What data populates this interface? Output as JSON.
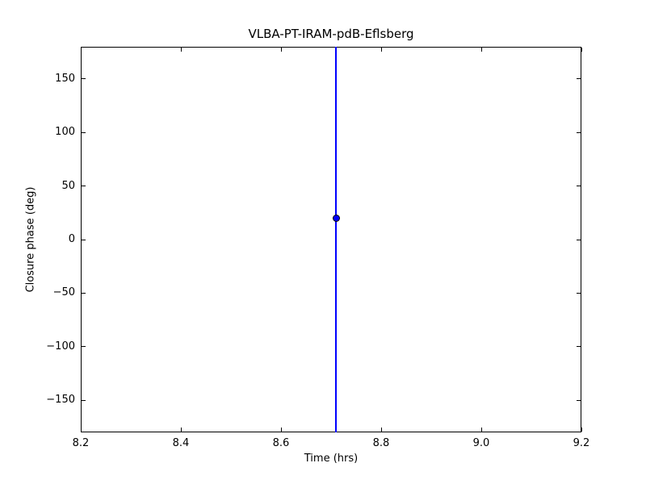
{
  "figure": {
    "background": "#ffffff"
  },
  "chart_data": {
    "type": "scatter",
    "title": "VLBA-PT-IRAM-pdB-Eflsberg",
    "xlabel": "Time (hrs)",
    "ylabel": "Closure phase (deg)",
    "xlim": [
      8.2,
      9.2
    ],
    "ylim": [
      -180,
      180
    ],
    "xtick_values": [
      8.2,
      8.4,
      8.6,
      8.8,
      9.0,
      9.2
    ],
    "xtick_labels": [
      "8.2",
      "8.4",
      "8.6",
      "8.8",
      "9.0",
      "9.2"
    ],
    "ytick_values": [
      -150,
      -100,
      -50,
      0,
      50,
      100,
      150
    ],
    "ytick_labels": [
      "−150",
      "−100",
      "−50",
      "0",
      "50",
      "100",
      "150"
    ],
    "grid": false,
    "legend": null,
    "ticks_direction": "in",
    "ticks_sides": [
      "left",
      "right",
      "top",
      "bottom"
    ],
    "series": [
      {
        "name": "closure phase",
        "marker": "circle",
        "color": "#0000ff",
        "points": [
          {
            "x": 8.71,
            "y": 20
          }
        ],
        "error_bars": [
          {
            "x": 8.71,
            "y_from": -180,
            "y_to": 180,
            "clipped_by_axis": true
          }
        ]
      }
    ]
  },
  "colors": {
    "errorbar_line": "#0000ff",
    "marker_fill": "#0000ff",
    "marker_edge": "#000000",
    "axis": "#000000",
    "text": "#000000",
    "background": "#ffffff"
  }
}
